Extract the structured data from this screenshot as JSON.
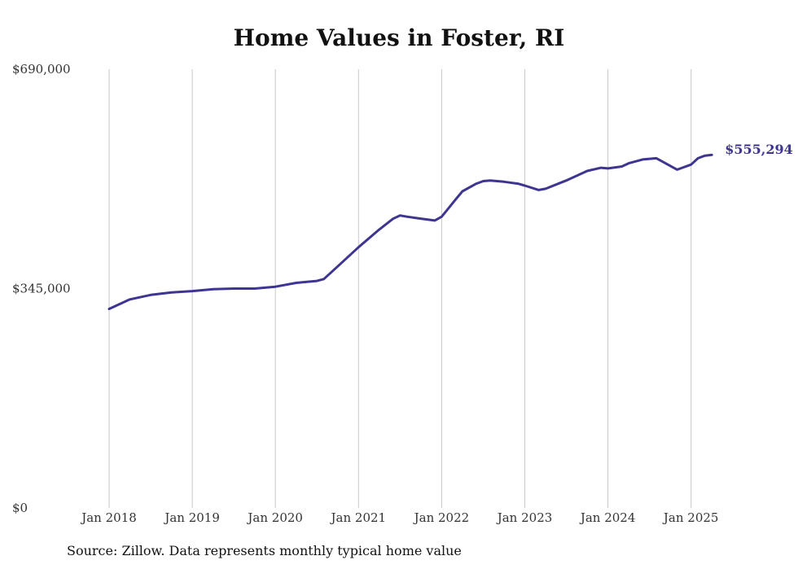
{
  "chart_data": {
    "type": "line",
    "title": "Home Values in Foster, RI",
    "xlabel": "",
    "ylabel": "",
    "ylim": [
      0,
      690000
    ],
    "yticks": [
      {
        "value": 0,
        "label": "$0"
      },
      {
        "value": 345000,
        "label": "$345,000"
      },
      {
        "value": 690000,
        "label": "$690,000"
      }
    ],
    "xticks": [
      "Jan 2018",
      "Jan 2019",
      "Jan 2020",
      "Jan 2021",
      "Jan 2022",
      "Jan 2023",
      "Jan 2024",
      "Jan 2025"
    ],
    "xlim": [
      2018.0,
      2025.333
    ],
    "grid": "vertical",
    "line_color": "#3d3590",
    "end_label": "$555,294",
    "series": [
      {
        "x": [
          2018.0,
          2018.25,
          2018.5,
          2018.75,
          2019.0,
          2019.25,
          2019.5,
          2019.75,
          2020.0,
          2020.25,
          2020.5,
          2020.583,
          2020.75,
          2021.0,
          2021.25,
          2021.417,
          2021.5,
          2021.583,
          2021.75,
          2021.917,
          2022.0,
          2022.167,
          2022.25,
          2022.417,
          2022.5,
          2022.583,
          2022.75,
          2022.917,
          2023.0,
          2023.167,
          2023.25,
          2023.5,
          2023.75,
          2023.917,
          2024.0,
          2024.167,
          2024.25,
          2024.417,
          2024.583,
          2024.833,
          2025.0,
          2025.083,
          2025.167,
          2025.25
        ],
        "y": [
          313000,
          328000,
          335000,
          339000,
          341000,
          344000,
          345000,
          345000,
          348000,
          354000,
          357000,
          360000,
          380000,
          410000,
          438000,
          455000,
          460000,
          458000,
          455000,
          452000,
          458000,
          485000,
          498000,
          510000,
          514000,
          515000,
          513000,
          510000,
          507000,
          500000,
          502000,
          515000,
          530000,
          535000,
          534000,
          537000,
          542000,
          548000,
          550000,
          532000,
          540000,
          550000,
          554000,
          555294
        ]
      }
    ]
  },
  "source_note": "Source: Zillow. Data represents monthly typical home value"
}
